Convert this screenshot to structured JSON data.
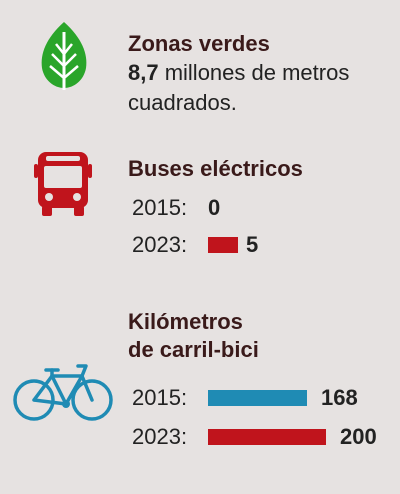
{
  "zonas": {
    "title": "Zonas verdes",
    "value_bold": "8,7",
    "value_rest": " millones de metros cuadrados.",
    "icon": "leaf-icon",
    "color": "#2aa52a"
  },
  "buses": {
    "title": "Buses eléctricos",
    "icon": "bus-icon",
    "color": "#c0141c"
  },
  "bici": {
    "title_line1": "Kilómetros",
    "title_line2": "de carril-bici",
    "icon": "bicycle-icon",
    "color": "#1f8bb4"
  },
  "chart_data": [
    {
      "type": "bar",
      "title": "Buses eléctricos",
      "categories": [
        "2015:",
        "2023:"
      ],
      "values": [
        0,
        5
      ],
      "value_labels": [
        "0",
        "5"
      ],
      "colors": [
        "#c0141c",
        "#c0141c"
      ]
    },
    {
      "type": "bar",
      "title": "Kilómetros de carril-bici",
      "categories": [
        "2015:",
        "2023:"
      ],
      "values": [
        168,
        200
      ],
      "value_labels": [
        "168",
        "200"
      ],
      "colors": [
        "#1f8bb4",
        "#c0141c"
      ]
    }
  ]
}
